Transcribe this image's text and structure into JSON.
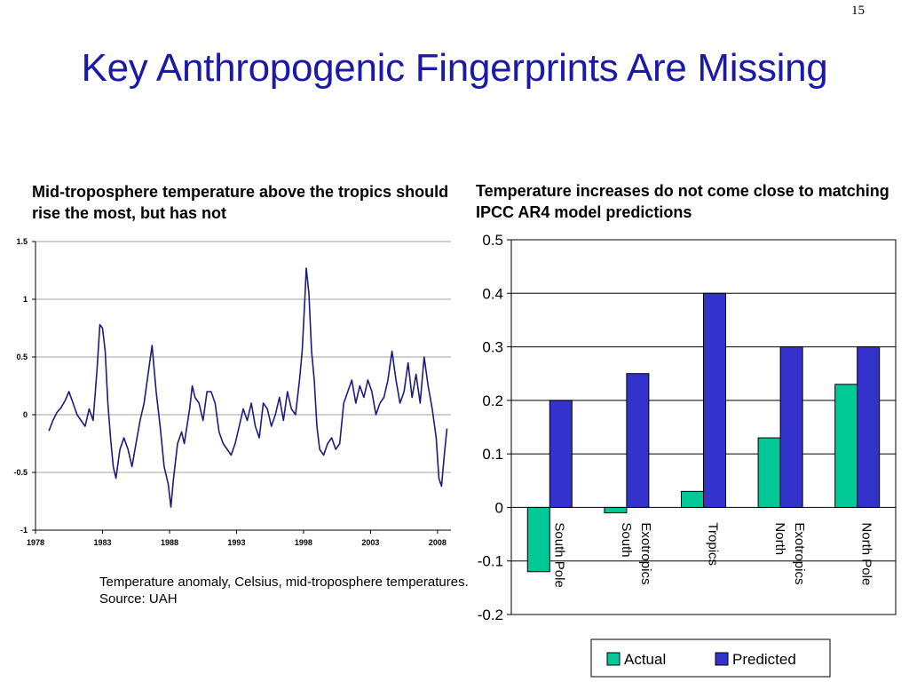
{
  "slide": {
    "number": "15",
    "title": "Key Anthropogenic Fingerprints Are Missing",
    "left_heading": "Mid-troposphere temperature above the tropics should rise the most, but has not",
    "right_heading": "Temperature increases do not come close to matching IPCC AR4 model predictions",
    "caption": "Temperature anomaly, Celsius, mid-troposphere temperatures.  Source:  UAH"
  },
  "colors": {
    "title": "#1a1aa6",
    "line": "#1c1c7e",
    "actual": "#00c896",
    "predicted": "#3333cc"
  },
  "chart_data": [
    {
      "type": "line",
      "title": "",
      "xlabel": "",
      "ylabel": "",
      "xlim": [
        1978,
        2009
      ],
      "ylim": [
        -1,
        1.5
      ],
      "xticks": [
        "1978",
        "1983",
        "1988",
        "1993",
        "1998",
        "2003",
        "2008"
      ],
      "yticks": [
        "1.5",
        "1",
        "0.5",
        "0",
        "-0.5",
        "-1"
      ],
      "grid": "horizontal",
      "series": [
        {
          "x": [
            1979.0,
            1979.3,
            1979.6,
            1979.9,
            1980.2,
            1980.5,
            1980.8,
            1981.1,
            1981.4,
            1981.7,
            1982.0,
            1982.3,
            1982.6,
            1982.8,
            1983.0,
            1983.2,
            1983.4,
            1983.6,
            1983.8,
            1984.0,
            1984.3,
            1984.6,
            1984.9,
            1985.2,
            1985.5,
            1985.8,
            1986.1,
            1986.4,
            1986.7,
            1987.0,
            1987.3,
            1987.6,
            1987.9,
            1988.1,
            1988.3,
            1988.6,
            1988.9,
            1989.1,
            1989.3,
            1989.5,
            1989.7,
            1989.9,
            1990.2,
            1990.5,
            1990.8,
            1991.1,
            1991.4,
            1991.7,
            1992.0,
            1992.3,
            1992.6,
            1992.9,
            1993.2,
            1993.5,
            1993.8,
            1994.1,
            1994.4,
            1994.7,
            1995.0,
            1995.3,
            1995.6,
            1995.9,
            1996.2,
            1996.5,
            1996.8,
            1997.1,
            1997.4,
            1997.7,
            1997.9,
            1998.1,
            1998.2,
            1998.4,
            1998.6,
            1998.8,
            1999.0,
            1999.2,
            1999.5,
            1999.8,
            2000.1,
            2000.4,
            2000.7,
            2001.0,
            2001.3,
            2001.6,
            2001.9,
            2002.2,
            2002.5,
            2002.8,
            2003.1,
            2003.4,
            2003.7,
            2004.0,
            2004.3,
            2004.6,
            2004.9,
            2005.2,
            2005.5,
            2005.8,
            2006.1,
            2006.4,
            2006.7,
            2007.0,
            2007.3,
            2007.6,
            2007.9,
            2008.1,
            2008.3,
            2008.5,
            2008.7
          ],
          "y": [
            -0.14,
            -0.05,
            0.02,
            0.06,
            0.12,
            0.2,
            0.1,
            0.0,
            -0.05,
            -0.1,
            0.05,
            -0.05,
            0.4,
            0.78,
            0.75,
            0.55,
            0.1,
            -0.2,
            -0.45,
            -0.55,
            -0.3,
            -0.2,
            -0.3,
            -0.45,
            -0.25,
            -0.05,
            0.1,
            0.35,
            0.6,
            0.2,
            -0.1,
            -0.45,
            -0.6,
            -0.8,
            -0.55,
            -0.25,
            -0.15,
            -0.25,
            -0.1,
            0.05,
            0.25,
            0.15,
            0.1,
            -0.05,
            0.2,
            0.2,
            0.1,
            -0.15,
            -0.25,
            -0.3,
            -0.35,
            -0.25,
            -0.1,
            0.05,
            -0.05,
            0.1,
            -0.1,
            -0.2,
            0.1,
            0.05,
            -0.1,
            0.0,
            0.15,
            -0.05,
            0.2,
            0.05,
            0.0,
            0.3,
            0.55,
            1.0,
            1.27,
            1.05,
            0.55,
            0.3,
            -0.1,
            -0.3,
            -0.35,
            -0.25,
            -0.2,
            -0.3,
            -0.25,
            0.1,
            0.2,
            0.3,
            0.1,
            0.25,
            0.15,
            0.3,
            0.2,
            0.0,
            0.1,
            0.15,
            0.3,
            0.55,
            0.3,
            0.1,
            0.2,
            0.45,
            0.15,
            0.35,
            0.1,
            0.5,
            0.25,
            0.05,
            -0.2,
            -0.55,
            -0.62,
            -0.35,
            -0.12
          ]
        }
      ]
    },
    {
      "type": "bar",
      "title": "",
      "xlabel": "",
      "ylabel": "",
      "ylim": [
        -0.2,
        0.5
      ],
      "yticks": [
        "0.5",
        "0.4",
        "0.3",
        "0.2",
        "0.1",
        "0",
        "-0.1",
        "-0.2"
      ],
      "grid": "horizontal",
      "categories": [
        [
          "South Pole"
        ],
        [
          "South",
          "Exotropics"
        ],
        [
          "Tropics"
        ],
        [
          "North",
          "Exotropics"
        ],
        [
          "North Pole"
        ]
      ],
      "series": [
        {
          "name": "Actual",
          "values": [
            -0.12,
            -0.01,
            0.03,
            0.13,
            0.23
          ]
        },
        {
          "name": "Predicted",
          "values": [
            0.2,
            0.25,
            0.4,
            0.3,
            0.3
          ]
        }
      ],
      "legend": "bottom"
    }
  ]
}
